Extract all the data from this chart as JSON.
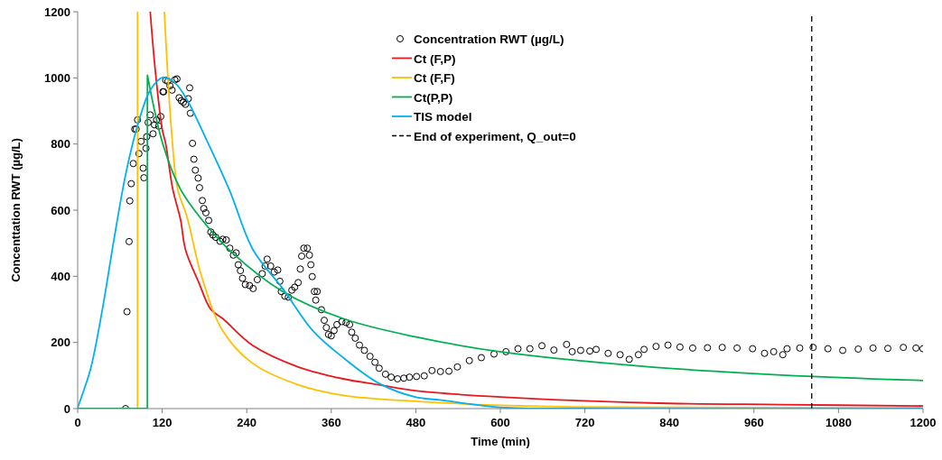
{
  "chart_data": {
    "type": "line",
    "xlabel": "Time (min)",
    "ylabel": "Concenttation RWT (µg/L)",
    "xlim": [
      0,
      1200
    ],
    "xticks": [
      0,
      120,
      240,
      360,
      480,
      600,
      720,
      840,
      960,
      1080,
      1200
    ],
    "ylim": [
      0,
      1200
    ],
    "yticks": [
      0,
      200,
      400,
      600,
      800,
      1000,
      1200
    ],
    "grid": false,
    "legend": "top right",
    "series": [
      {
        "name": "Concentration RWT (µg/L)",
        "type": "scatter",
        "marker": "circle",
        "color": "#000000",
        "x": [
          68,
          70,
          73,
          74,
          76,
          79,
          81,
          83,
          85,
          87,
          90,
          93,
          94,
          97,
          98,
          100,
          103,
          107,
          109,
          112,
          115,
          118,
          121,
          122,
          125,
          128,
          131,
          134,
          138,
          141,
          144,
          147,
          150,
          153,
          157,
          159,
          160,
          163,
          165,
          167,
          171,
          173,
          177,
          179,
          182,
          186,
          189,
          192,
          196,
          202,
          206,
          211,
          216,
          221,
          225,
          228,
          231,
          234,
          238,
          244,
          249,
          255,
          262,
          266,
          269,
          274,
          279,
          284,
          287,
          289,
          294,
          299,
          304,
          308,
          313,
          316,
          318,
          321,
          326,
          329,
          331,
          333,
          336,
          338,
          340,
          346,
          350,
          353,
          356,
          360,
          364,
          368,
          375,
          381,
          386,
          389,
          394,
          400,
          407,
          415,
          422,
          428,
          437,
          445,
          454,
          463,
          471,
          481,
          492,
          503,
          515,
          527,
          539,
          556,
          573,
          591,
          608,
          625,
          642,
          659,
          676,
          694,
          702,
          714,
          727,
          736,
          753,
          770,
          783,
          796,
          804,
          821,
          838,
          855,
          873,
          894,
          915,
          936,
          958,
          975,
          988,
          1001,
          1007,
          1025,
          1044,
          1065,
          1086,
          1108,
          1129,
          1150,
          1172,
          1190,
          1200
        ],
        "values": [
          0,
          293,
          505,
          628,
          680,
          741,
          845,
          845,
          873,
          771,
          808,
          727,
          698,
          787,
          822,
          865,
          888,
          831,
          858,
          873,
          854,
          883,
          958,
          958,
          993,
          990,
          976,
          963,
          994,
          997,
          940,
          931,
          926,
          920,
          937,
          970,
          893,
          802,
          754,
          721,
          697,
          668,
          629,
          605,
          592,
          569,
          534,
          525,
          518,
          506,
          512,
          510,
          485,
          464,
          471,
          435,
          417,
          394,
          375,
          372,
          363,
          390,
          408,
          431,
          452,
          431,
          413,
          419,
          385,
          354,
          340,
          337,
          358,
          367,
          381,
          422,
          461,
          485,
          485,
          464,
          435,
          399,
          354,
          328,
          354,
          299,
          267,
          245,
          224,
          220,
          236,
          254,
          263,
          260,
          254,
          231,
          213,
          192,
          176,
          158,
          140,
          122,
          104,
          95,
          90,
          92,
          95,
          97,
          99,
          115,
          112,
          113,
          126,
          145,
          154,
          165,
          172,
          181,
          181,
          190,
          177,
          194,
          172,
          176,
          174,
          179,
          167,
          163,
          149,
          163,
          179,
          188,
          192,
          186,
          183,
          184,
          185,
          183,
          181,
          167,
          172,
          163,
          181,
          183,
          185,
          181,
          176,
          180,
          183,
          182,
          185,
          183,
          181
        ]
      },
      {
        "name": "Ct (F,P)",
        "color": "#e8191e",
        "x": [
          103,
          110,
          120,
          125,
          135,
          146,
          153,
          172,
          189,
          206,
          249,
          313,
          377,
          428,
          479,
          600,
          813,
          1000,
          1200
        ],
        "values": [
          1200,
          1026,
          845,
          800,
          663,
          572,
          481,
          381,
          300,
          272,
          190,
          126,
          90,
          72,
          54,
          35,
          17,
          12,
          8
        ]
      },
      {
        "name": "Ct (F,F)",
        "color": "#ffc000",
        "x": [
          85,
          85,
          104,
          123,
          133,
          142,
          155,
          176,
          206,
          249,
          313,
          377,
          479,
          600,
          720,
          1200
        ],
        "values": [
          0,
          1200,
          null,
          1200,
          845,
          663,
          581,
          399,
          235,
          136,
          72,
          40,
          22,
          10,
          5,
          2
        ]
      },
      {
        "name": "Ct(P,P)",
        "color": "#00b050",
        "x": [
          0,
          99,
          99,
          121,
          146,
          176,
          219,
          291,
          377,
          479,
          599,
          813,
          1044,
          1200
        ],
        "values": [
          0,
          0,
          1008,
          799,
          663,
          572,
          472,
          354,
          272,
          217,
          172,
          126,
          97,
          85
        ]
      },
      {
        "name": "TIS model",
        "color": "#00b0f0",
        "x": [
          0,
          1,
          18,
          35,
          52,
          69,
          86,
          103,
          121,
          138,
          155,
          180,
          215,
          249,
          291,
          334,
          377,
          428,
          479,
          514,
          599,
          720,
          1200
        ],
        "values": [
          0,
          8,
          117,
          299,
          517,
          717,
          863,
          963,
          1001,
          985,
          935,
          826,
          663,
          480,
          363,
          235,
          154,
          76,
          35,
          26,
          4,
          0,
          0
        ]
      },
      {
        "name": "End of experiment, Q_out=0",
        "color": "#000000",
        "line_style": "dashed",
        "x": [
          1042,
          1042
        ],
        "values": [
          0,
          1200
        ]
      }
    ]
  }
}
